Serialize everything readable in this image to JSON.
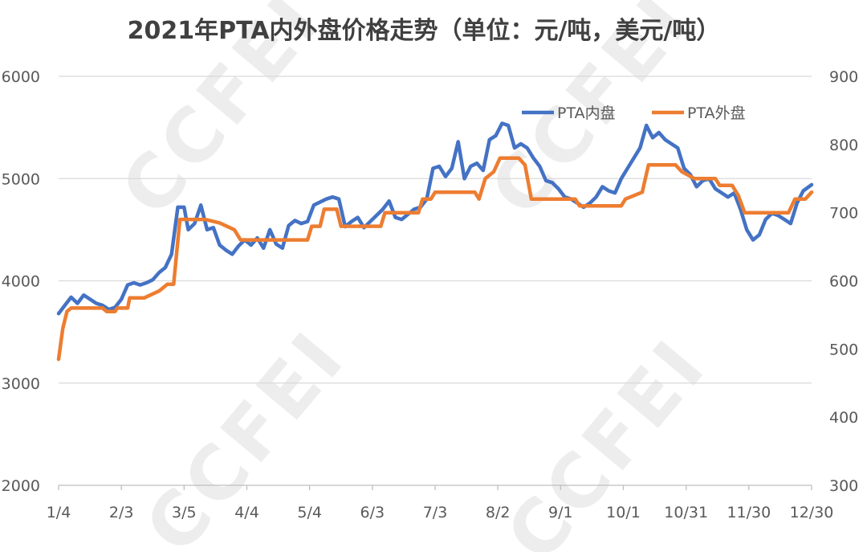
{
  "chart_data": {
    "type": "line",
    "title": "2021年PTA内外盘价格走势（单位：元/吨，美元/吨）",
    "xlabel": "",
    "ylabel": "",
    "y2label": "",
    "x_ticks": [
      "1/4",
      "2/3",
      "3/5",
      "4/4",
      "5/4",
      "6/3",
      "7/3",
      "8/2",
      "9/1",
      "10/1",
      "10/31",
      "11/30",
      "12/30"
    ],
    "ylim": [
      2000,
      6000
    ],
    "y_ticks": [
      "6000",
      "5000",
      "4000",
      "3000",
      "2000"
    ],
    "y2lim": [
      300,
      900
    ],
    "y2_ticks": [
      "900",
      "800",
      "700",
      "600",
      "500",
      "400",
      "300"
    ],
    "grid": "horizontal",
    "legend": "top-right",
    "watermark": "CCFEI",
    "series": [
      {
        "name": "PTA内盘",
        "axis": "left",
        "color": "#4472C4",
        "points": [
          [
            "1/4",
            3680
          ],
          [
            "1/7",
            3760
          ],
          [
            "1/10",
            3840
          ],
          [
            "1/13",
            3780
          ],
          [
            "1/16",
            3860
          ],
          [
            "1/19",
            3820
          ],
          [
            "1/22",
            3780
          ],
          [
            "1/25",
            3760
          ],
          [
            "1/28",
            3720
          ],
          [
            "1/31",
            3740
          ],
          [
            "2/3",
            3820
          ],
          [
            "2/6",
            3960
          ],
          [
            "2/9",
            3980
          ],
          [
            "2/12",
            3960
          ],
          [
            "2/15",
            3980
          ],
          [
            "2/18",
            4010
          ],
          [
            "2/21",
            4080
          ],
          [
            "2/24",
            4130
          ],
          [
            "2/27",
            4260
          ],
          [
            "3/2",
            4720
          ],
          [
            "3/5",
            4720
          ],
          [
            "3/7",
            4500
          ],
          [
            "3/10",
            4560
          ],
          [
            "3/13",
            4740
          ],
          [
            "3/16",
            4500
          ],
          [
            "3/19",
            4520
          ],
          [
            "3/22",
            4350
          ],
          [
            "3/25",
            4300
          ],
          [
            "3/28",
            4260
          ],
          [
            "3/31",
            4340
          ],
          [
            "4/3",
            4400
          ],
          [
            "4/6",
            4350
          ],
          [
            "4/9",
            4420
          ],
          [
            "4/12",
            4320
          ],
          [
            "4/15",
            4500
          ],
          [
            "4/18",
            4360
          ],
          [
            "4/21",
            4320
          ],
          [
            "4/24",
            4540
          ],
          [
            "4/27",
            4590
          ],
          [
            "4/30",
            4560
          ],
          [
            "5/3",
            4580
          ],
          [
            "5/6",
            4740
          ],
          [
            "5/9",
            4770
          ],
          [
            "5/12",
            4800
          ],
          [
            "5/15",
            4820
          ],
          [
            "5/18",
            4800
          ],
          [
            "5/21",
            4530
          ],
          [
            "5/24",
            4580
          ],
          [
            "5/27",
            4620
          ],
          [
            "5/30",
            4520
          ],
          [
            "6/2",
            4580
          ],
          [
            "6/5",
            4640
          ],
          [
            "6/8",
            4700
          ],
          [
            "6/11",
            4780
          ],
          [
            "6/14",
            4620
          ],
          [
            "6/17",
            4600
          ],
          [
            "6/20",
            4650
          ],
          [
            "6/23",
            4700
          ],
          [
            "6/26",
            4720
          ],
          [
            "6/29",
            4800
          ],
          [
            "7/2",
            5100
          ],
          [
            "7/5",
            5120
          ],
          [
            "7/8",
            5020
          ],
          [
            "7/11",
            5100
          ],
          [
            "7/14",
            5360
          ],
          [
            "7/17",
            5000
          ],
          [
            "7/20",
            5120
          ],
          [
            "7/23",
            5150
          ],
          [
            "7/26",
            5080
          ],
          [
            "7/29",
            5380
          ],
          [
            "8/1",
            5420
          ],
          [
            "8/4",
            5540
          ],
          [
            "8/7",
            5520
          ],
          [
            "8/10",
            5300
          ],
          [
            "8/13",
            5340
          ],
          [
            "8/16",
            5300
          ],
          [
            "8/19",
            5200
          ],
          [
            "8/22",
            5120
          ],
          [
            "8/25",
            4980
          ],
          [
            "8/28",
            4960
          ],
          [
            "8/31",
            4900
          ],
          [
            "9/3",
            4820
          ],
          [
            "9/6",
            4800
          ],
          [
            "9/9",
            4760
          ],
          [
            "9/12",
            4720
          ],
          [
            "9/15",
            4760
          ],
          [
            "9/18",
            4820
          ],
          [
            "9/21",
            4920
          ],
          [
            "9/24",
            4880
          ],
          [
            "9/27",
            4860
          ],
          [
            "9/30",
            5000
          ],
          [
            "10/3",
            5100
          ],
          [
            "10/6",
            5200
          ],
          [
            "10/9",
            5300
          ],
          [
            "10/12",
            5520
          ],
          [
            "10/15",
            5400
          ],
          [
            "10/18",
            5450
          ],
          [
            "10/21",
            5380
          ],
          [
            "10/24",
            5340
          ],
          [
            "10/27",
            5300
          ],
          [
            "10/30",
            5100
          ],
          [
            "11/2",
            5040
          ],
          [
            "11/5",
            4920
          ],
          [
            "11/8",
            4980
          ],
          [
            "11/11",
            5000
          ],
          [
            "11/14",
            4900
          ],
          [
            "11/17",
            4860
          ],
          [
            "11/20",
            4820
          ],
          [
            "11/23",
            4860
          ],
          [
            "11/26",
            4700
          ],
          [
            "11/29",
            4500
          ],
          [
            "12/2",
            4400
          ],
          [
            "12/5",
            4450
          ],
          [
            "12/8",
            4600
          ],
          [
            "12/11",
            4660
          ],
          [
            "12/14",
            4640
          ],
          [
            "12/17",
            4600
          ],
          [
            "12/20",
            4560
          ],
          [
            "12/23",
            4760
          ],
          [
            "12/26",
            4880
          ],
          [
            "12/30",
            4940
          ]
        ]
      },
      {
        "name": "PTA外盘",
        "axis": "right",
        "color": "#ED7D31",
        "points": [
          [
            "1/4",
            485
          ],
          [
            "1/6",
            530
          ],
          [
            "1/8",
            555
          ],
          [
            "1/10",
            560
          ],
          [
            "1/20",
            560
          ],
          [
            "1/25",
            560
          ],
          [
            "1/27",
            555
          ],
          [
            "1/31",
            555
          ],
          [
            "2/1",
            560
          ],
          [
            "2/6",
            560
          ],
          [
            "2/7",
            575
          ],
          [
            "2/14",
            575
          ],
          [
            "2/21",
            585
          ],
          [
            "2/25",
            595
          ],
          [
            "2/28",
            595
          ],
          [
            "3/3",
            690
          ],
          [
            "3/15",
            690
          ],
          [
            "3/22",
            685
          ],
          [
            "3/29",
            675
          ],
          [
            "4/1",
            660
          ],
          [
            "4/30",
            660
          ],
          [
            "5/3",
            660
          ],
          [
            "5/5",
            680
          ],
          [
            "5/9",
            680
          ],
          [
            "5/11",
            705
          ],
          [
            "5/17",
            705
          ],
          [
            "5/19",
            680
          ],
          [
            "6/7",
            680
          ],
          [
            "6/9",
            700
          ],
          [
            "6/25",
            700
          ],
          [
            "6/27",
            720
          ],
          [
            "7/1",
            720
          ],
          [
            "7/3",
            730
          ],
          [
            "7/20",
            730
          ],
          [
            "7/22",
            730
          ],
          [
            "7/24",
            720
          ],
          [
            "7/27",
            750
          ],
          [
            "7/31",
            760
          ],
          [
            "8/3",
            780
          ],
          [
            "8/12",
            780
          ],
          [
            "8/15",
            770
          ],
          [
            "8/18",
            720
          ],
          [
            "9/8",
            720
          ],
          [
            "9/10",
            710
          ],
          [
            "9/30",
            710
          ],
          [
            "10/2",
            720
          ],
          [
            "10/10",
            730
          ],
          [
            "10/13",
            770
          ],
          [
            "10/26",
            770
          ],
          [
            "10/29",
            760
          ],
          [
            "11/4",
            750
          ],
          [
            "11/14",
            750
          ],
          [
            "11/16",
            740
          ],
          [
            "11/22",
            740
          ],
          [
            "11/25",
            725
          ],
          [
            "11/28",
            700
          ],
          [
            "12/19",
            700
          ],
          [
            "12/22",
            720
          ],
          [
            "12/27",
            720
          ],
          [
            "12/30",
            730
          ]
        ]
      }
    ]
  }
}
